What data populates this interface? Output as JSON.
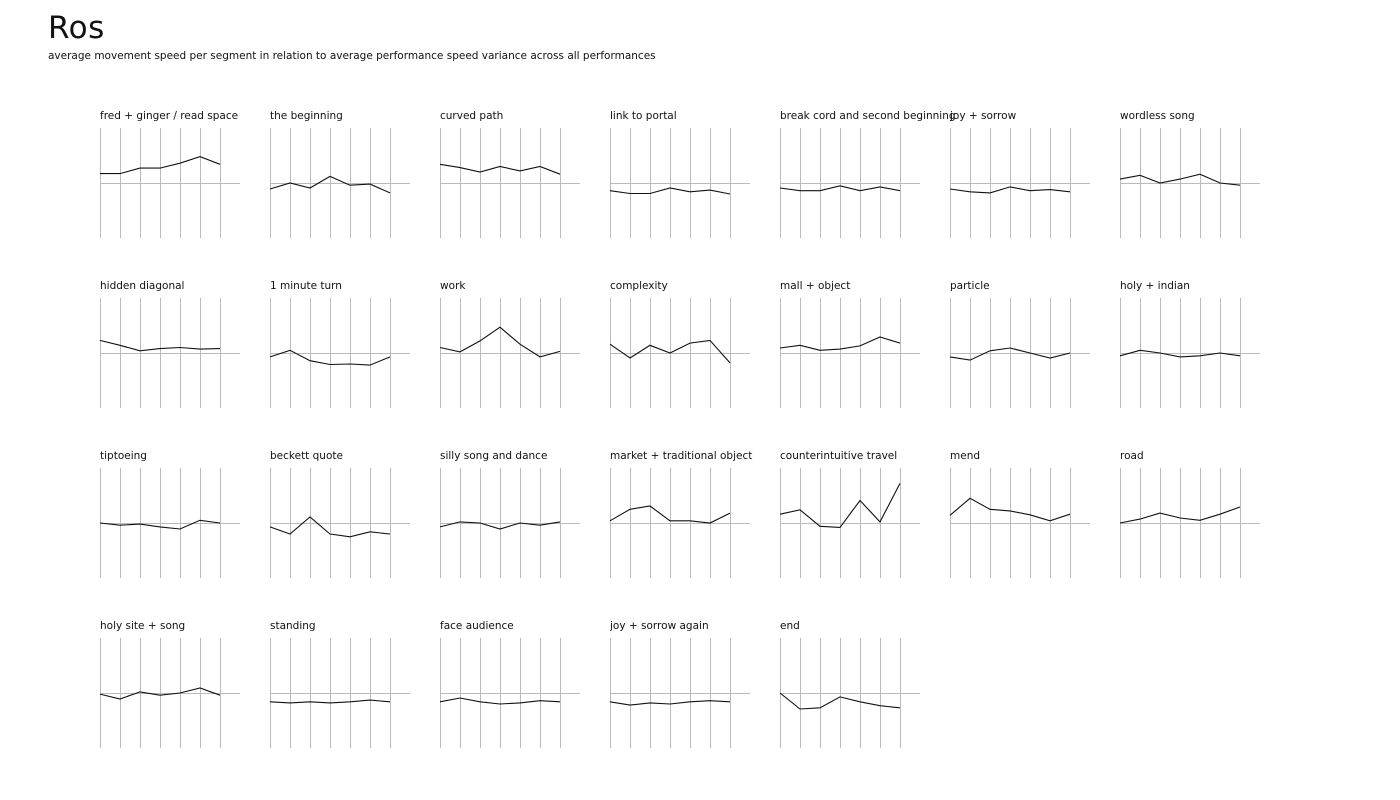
{
  "header": {
    "title": "Ros",
    "subtitle": "average movement speed per segment in relation to average performance speed variance across all performances"
  },
  "colors": {
    "line": "#111111",
    "grid": "#bbbbbb",
    "baseline": "#bbbbbb"
  },
  "chart_data": [
    {
      "type": "line",
      "title": "fred + ginger / read space",
      "x": [
        1,
        2,
        3,
        4,
        5,
        6,
        7
      ],
      "values": [
        0.17,
        0.17,
        0.27,
        0.27,
        0.36,
        0.48,
        0.34
      ],
      "ylim": [
        -1,
        1
      ],
      "grid": true
    },
    {
      "type": "line",
      "title": "the beginning",
      "x": [
        1,
        2,
        3,
        4,
        5,
        6,
        7
      ],
      "values": [
        -0.11,
        0.0,
        -0.09,
        0.12,
        -0.04,
        -0.02,
        -0.18
      ],
      "ylim": [
        -1,
        1
      ],
      "grid": true
    },
    {
      "type": "line",
      "title": "curved path",
      "x": [
        1,
        2,
        3,
        4,
        5,
        6,
        7
      ],
      "values": [
        0.34,
        0.28,
        0.2,
        0.3,
        0.22,
        0.3,
        0.16
      ],
      "ylim": [
        -1,
        1
      ],
      "grid": true
    },
    {
      "type": "line",
      "title": "link to portal",
      "x": [
        1,
        2,
        3,
        4,
        5,
        6,
        7
      ],
      "values": [
        -0.14,
        -0.19,
        -0.19,
        -0.09,
        -0.16,
        -0.13,
        -0.2
      ],
      "ylim": [
        -1,
        1
      ],
      "grid": true
    },
    {
      "type": "line",
      "title": "break cord and second beginning",
      "x": [
        1,
        2,
        3,
        4,
        5,
        6,
        7
      ],
      "values": [
        -0.09,
        -0.14,
        -0.14,
        -0.05,
        -0.14,
        -0.07,
        -0.14
      ],
      "ylim": [
        -1,
        1
      ],
      "grid": true
    },
    {
      "type": "line",
      "title": "joy + sorrow",
      "x": [
        1,
        2,
        3,
        4,
        5,
        6,
        7
      ],
      "values": [
        -0.11,
        -0.16,
        -0.18,
        -0.07,
        -0.14,
        -0.12,
        -0.16
      ],
      "ylim": [
        -1,
        1
      ],
      "grid": true
    },
    {
      "type": "line",
      "title": "wordless song",
      "x": [
        1,
        2,
        3,
        4,
        5,
        6,
        7
      ],
      "values": [
        0.07,
        0.14,
        0.0,
        0.07,
        0.16,
        0.0,
        -0.04
      ],
      "ylim": [
        -1,
        1
      ],
      "grid": true
    },
    {
      "type": "line",
      "title": "hidden diagonal",
      "x": [
        1,
        2,
        3,
        4,
        5,
        6,
        7
      ],
      "values": [
        0.23,
        0.14,
        0.04,
        0.08,
        0.1,
        0.07,
        0.08
      ],
      "ylim": [
        -1,
        1
      ],
      "grid": true
    },
    {
      "type": "line",
      "title": "1 minute turn",
      "x": [
        1,
        2,
        3,
        4,
        5,
        6,
        7
      ],
      "values": [
        -0.07,
        0.05,
        -0.14,
        -0.21,
        -0.2,
        -0.22,
        -0.07
      ],
      "ylim": [
        -1,
        1
      ],
      "grid": true
    },
    {
      "type": "line",
      "title": "work",
      "x": [
        1,
        2,
        3,
        4,
        5,
        6,
        7
      ],
      "values": [
        0.1,
        0.02,
        0.22,
        0.47,
        0.16,
        -0.07,
        0.03
      ],
      "ylim": [
        -1,
        1
      ],
      "grid": true
    },
    {
      "type": "line",
      "title": "complexity",
      "x": [
        1,
        2,
        3,
        4,
        5,
        6,
        7
      ],
      "values": [
        0.16,
        -0.09,
        0.14,
        0.0,
        0.18,
        0.23,
        -0.18
      ],
      "ylim": [
        -1,
        1
      ],
      "grid": true
    },
    {
      "type": "line",
      "title": "mall + object",
      "x": [
        1,
        2,
        3,
        4,
        5,
        6,
        7
      ],
      "values": [
        0.09,
        0.14,
        0.05,
        0.07,
        0.13,
        0.29,
        0.18
      ],
      "ylim": [
        -1,
        1
      ],
      "grid": true
    },
    {
      "type": "line",
      "title": "particle",
      "x": [
        1,
        2,
        3,
        4,
        5,
        6,
        7
      ],
      "values": [
        -0.07,
        -0.13,
        0.04,
        0.09,
        0.0,
        -0.09,
        0.0
      ],
      "ylim": [
        -1,
        1
      ],
      "grid": true
    },
    {
      "type": "line",
      "title": "holy + indian",
      "x": [
        1,
        2,
        3,
        4,
        5,
        6,
        7
      ],
      "values": [
        -0.05,
        0.05,
        0.0,
        -0.07,
        -0.05,
        0.0,
        -0.05
      ],
      "ylim": [
        -1,
        1
      ],
      "grid": true
    },
    {
      "type": "line",
      "title": "tiptoeing",
      "x": [
        1,
        2,
        3,
        4,
        5,
        6,
        7
      ],
      "values": [
        0.0,
        -0.04,
        -0.02,
        -0.07,
        -0.11,
        0.05,
        0.0
      ],
      "ylim": [
        -1,
        1
      ],
      "grid": true
    },
    {
      "type": "line",
      "title": "beckett quote",
      "x": [
        1,
        2,
        3,
        4,
        5,
        6,
        7
      ],
      "values": [
        -0.07,
        -0.2,
        0.11,
        -0.2,
        -0.25,
        -0.16,
        -0.2
      ],
      "ylim": [
        -1,
        1
      ],
      "grid": true
    },
    {
      "type": "line",
      "title": "silly song and dance",
      "x": [
        1,
        2,
        3,
        4,
        5,
        6,
        7
      ],
      "values": [
        -0.07,
        0.02,
        0.0,
        -0.11,
        0.0,
        -0.04,
        0.02
      ],
      "ylim": [
        -1,
        1
      ],
      "grid": true
    },
    {
      "type": "line",
      "title": "market + traditional object",
      "x": [
        1,
        2,
        3,
        4,
        5,
        6,
        7
      ],
      "values": [
        0.04,
        0.25,
        0.31,
        0.04,
        0.04,
        0.0,
        0.18
      ],
      "ylim": [
        -1,
        1
      ],
      "grid": true
    },
    {
      "type": "line",
      "title": "counterintuitive travel",
      "x": [
        1,
        2,
        3,
        4,
        5,
        6,
        7
      ],
      "values": [
        0.16,
        0.24,
        -0.06,
        -0.08,
        0.41,
        0.02,
        0.72
      ],
      "ylim": [
        -1,
        1
      ],
      "grid": true
    },
    {
      "type": "line",
      "title": "mend",
      "x": [
        1,
        2,
        3,
        4,
        5,
        6,
        7
      ],
      "values": [
        0.14,
        0.45,
        0.25,
        0.22,
        0.15,
        0.04,
        0.16
      ],
      "ylim": [
        -1,
        1
      ],
      "grid": true
    },
    {
      "type": "line",
      "title": "road",
      "x": [
        1,
        2,
        3,
        4,
        5,
        6,
        7
      ],
      "values": [
        0.0,
        0.07,
        0.18,
        0.09,
        0.05,
        0.16,
        0.29
      ],
      "ylim": [
        -1,
        1
      ],
      "grid": true
    },
    {
      "type": "line",
      "title": "holy site + song",
      "x": [
        1,
        2,
        3,
        4,
        5,
        6,
        7
      ],
      "values": [
        -0.02,
        -0.11,
        0.02,
        -0.04,
        0.0,
        0.09,
        -0.04
      ],
      "ylim": [
        -1,
        1
      ],
      "grid": true
    },
    {
      "type": "line",
      "title": "standing",
      "x": [
        1,
        2,
        3,
        4,
        5,
        6,
        7
      ],
      "values": [
        -0.16,
        -0.18,
        -0.16,
        -0.18,
        -0.16,
        -0.13,
        -0.16
      ],
      "ylim": [
        -1,
        1
      ],
      "grid": true
    },
    {
      "type": "line",
      "title": "face audience",
      "x": [
        1,
        2,
        3,
        4,
        5,
        6,
        7
      ],
      "values": [
        -0.16,
        -0.09,
        -0.16,
        -0.2,
        -0.18,
        -0.14,
        -0.16
      ],
      "ylim": [
        -1,
        1
      ],
      "grid": true
    },
    {
      "type": "line",
      "title": "joy + sorrow again",
      "x": [
        1,
        2,
        3,
        4,
        5,
        6,
        7
      ],
      "values": [
        -0.16,
        -0.22,
        -0.18,
        -0.2,
        -0.16,
        -0.14,
        -0.16
      ],
      "ylim": [
        -1,
        1
      ],
      "grid": true
    },
    {
      "type": "line",
      "title": "end",
      "x": [
        1,
        2,
        3,
        4,
        5,
        6,
        7
      ],
      "values": [
        0.0,
        -0.29,
        -0.27,
        -0.07,
        -0.16,
        -0.23,
        -0.27
      ],
      "ylim": [
        -1,
        1
      ],
      "grid": true
    }
  ]
}
